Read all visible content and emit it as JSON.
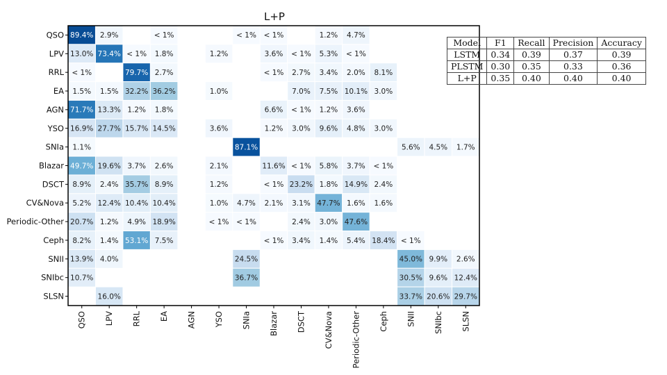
{
  "chart_data": {
    "type": "heatmap",
    "title": "L+P",
    "xlabel": "",
    "ylabel": "",
    "row_labels": [
      "QSO",
      "LPV",
      "RRL",
      "EA",
      "AGN",
      "YSO",
      "SNIa",
      "Blazar",
      "DSCT",
      "CV&Nova",
      "Periodic-Other",
      "Ceph",
      "SNII",
      "SNIbc",
      "SLSN"
    ],
    "col_labels": [
      "QSO",
      "LPV",
      "RRL",
      "EA",
      "AGN",
      "YSO",
      "SNIa",
      "Blazar",
      "DSCT",
      "CV&Nova",
      "Periodic-Other",
      "Ceph",
      "SNII",
      "SNIbc",
      "SLSN"
    ],
    "value_unit": "percent",
    "values": [
      [
        89.4,
        2.9,
        null,
        0.5,
        null,
        null,
        0.5,
        0.5,
        null,
        1.2,
        4.7,
        null,
        null,
        null,
        null
      ],
      [
        13.0,
        73.4,
        0.5,
        1.8,
        null,
        1.2,
        null,
        3.6,
        0.5,
        5.3,
        0.5,
        null,
        null,
        null,
        null
      ],
      [
        0.5,
        null,
        79.7,
        2.7,
        null,
        null,
        null,
        0.5,
        2.7,
        3.4,
        2.0,
        8.1,
        null,
        null,
        null
      ],
      [
        1.5,
        1.5,
        32.2,
        36.2,
        null,
        1.0,
        null,
        null,
        7.0,
        7.5,
        10.1,
        3.0,
        null,
        null,
        null
      ],
      [
        71.7,
        13.3,
        1.2,
        1.8,
        null,
        null,
        null,
        6.6,
        0.5,
        1.2,
        3.6,
        null,
        null,
        null,
        null
      ],
      [
        16.9,
        27.7,
        15.7,
        14.5,
        null,
        3.6,
        null,
        1.2,
        3.0,
        9.6,
        4.8,
        3.0,
        null,
        null,
        null
      ],
      [
        1.1,
        null,
        null,
        null,
        null,
        null,
        87.1,
        null,
        null,
        null,
        null,
        null,
        5.6,
        4.5,
        1.7
      ],
      [
        49.7,
        19.6,
        3.7,
        2.6,
        null,
        2.1,
        null,
        11.6,
        0.5,
        5.8,
        3.7,
        0.5,
        null,
        null,
        null
      ],
      [
        8.9,
        2.4,
        35.7,
        8.9,
        null,
        1.2,
        null,
        0.5,
        23.2,
        1.8,
        14.9,
        2.4,
        null,
        null,
        null
      ],
      [
        5.2,
        12.4,
        10.4,
        10.4,
        null,
        1.0,
        4.7,
        2.1,
        3.1,
        47.7,
        1.6,
        1.6,
        null,
        null,
        null
      ],
      [
        20.7,
        1.2,
        4.9,
        18.9,
        null,
        0.5,
        0.5,
        null,
        2.4,
        3.0,
        47.6,
        null,
        null,
        null,
        null
      ],
      [
        8.2,
        1.4,
        53.1,
        7.5,
        null,
        null,
        null,
        0.5,
        3.4,
        1.4,
        5.4,
        18.4,
        0.5,
        null,
        null
      ],
      [
        13.9,
        4.0,
        null,
        null,
        null,
        null,
        24.5,
        null,
        null,
        null,
        null,
        null,
        45.0,
        9.9,
        2.6
      ],
      [
        10.7,
        null,
        null,
        null,
        null,
        null,
        36.7,
        null,
        null,
        null,
        null,
        null,
        30.5,
        9.6,
        12.4
      ],
      [
        null,
        16.0,
        null,
        null,
        null,
        null,
        null,
        null,
        null,
        null,
        null,
        null,
        33.7,
        20.6,
        29.7
      ]
    ],
    "cell_labels": [
      [
        "89.4%",
        "2.9%",
        "",
        "< 1%",
        "",
        "",
        "< 1%",
        "< 1%",
        "",
        "1.2%",
        "4.7%",
        "",
        "",
        "",
        ""
      ],
      [
        "13.0%",
        "73.4%",
        "< 1%",
        "1.8%",
        "",
        "1.2%",
        "",
        "3.6%",
        "< 1%",
        "5.3%",
        "< 1%",
        "",
        "",
        "",
        ""
      ],
      [
        "< 1%",
        "",
        "79.7%",
        "2.7%",
        "",
        "",
        "",
        "< 1%",
        "2.7%",
        "3.4%",
        "2.0%",
        "8.1%",
        "",
        "",
        ""
      ],
      [
        "1.5%",
        "1.5%",
        "32.2%",
        "36.2%",
        "",
        "1.0%",
        "",
        "",
        "7.0%",
        "7.5%",
        "10.1%",
        "3.0%",
        "",
        "",
        ""
      ],
      [
        "71.7%",
        "13.3%",
        "1.2%",
        "1.8%",
        "",
        "",
        "",
        "6.6%",
        "< 1%",
        "1.2%",
        "3.6%",
        "",
        "",
        "",
        ""
      ],
      [
        "16.9%",
        "27.7%",
        "15.7%",
        "14.5%",
        "",
        "3.6%",
        "",
        "1.2%",
        "3.0%",
        "9.6%",
        "4.8%",
        "3.0%",
        "",
        "",
        ""
      ],
      [
        "1.1%",
        "",
        "",
        "",
        "",
        "",
        "87.1%",
        "",
        "",
        "",
        "",
        "",
        "5.6%",
        "4.5%",
        "1.7%"
      ],
      [
        "49.7%",
        "19.6%",
        "3.7%",
        "2.6%",
        "",
        "2.1%",
        "",
        "11.6%",
        "< 1%",
        "5.8%",
        "3.7%",
        "< 1%",
        "",
        "",
        ""
      ],
      [
        "8.9%",
        "2.4%",
        "35.7%",
        "8.9%",
        "",
        "1.2%",
        "",
        "< 1%",
        "23.2%",
        "1.8%",
        "14.9%",
        "2.4%",
        "",
        "",
        ""
      ],
      [
        "5.2%",
        "12.4%",
        "10.4%",
        "10.4%",
        "",
        "1.0%",
        "4.7%",
        "2.1%",
        "3.1%",
        "47.7%",
        "1.6%",
        "1.6%",
        "",
        "",
        ""
      ],
      [
        "20.7%",
        "1.2%",
        "4.9%",
        "18.9%",
        "",
        "< 1%",
        "< 1%",
        "",
        "2.4%",
        "3.0%",
        "47.6%",
        "",
        "",
        "",
        ""
      ],
      [
        "8.2%",
        "1.4%",
        "53.1%",
        "7.5%",
        "",
        "",
        "",
        "< 1%",
        "3.4%",
        "1.4%",
        "5.4%",
        "18.4%",
        "< 1%",
        "",
        ""
      ],
      [
        "13.9%",
        "4.0%",
        "",
        "",
        "",
        "",
        "24.5%",
        "",
        "",
        "",
        "",
        "",
        "45.0%",
        "9.9%",
        "2.6%"
      ],
      [
        "10.7%",
        "",
        "",
        "",
        "",
        "",
        "36.7%",
        "",
        "",
        "",
        "",
        "",
        "30.5%",
        "9.6%",
        "12.4%"
      ],
      [
        "",
        "16.0%",
        "",
        "",
        "",
        "",
        "",
        "",
        "",
        "",
        "",
        "",
        "33.7%",
        "20.6%",
        "29.7%"
      ]
    ],
    "color_range": [
      0,
      100
    ],
    "colormap": "Blues",
    "grid": false,
    "legend": "none"
  },
  "metrics_table": {
    "headers": [
      "Model",
      "F1",
      "Recall",
      "Precision",
      "Accuracy"
    ],
    "rows": [
      [
        "LSTM",
        "0.34",
        "0.39",
        "0.37",
        "0.39"
      ],
      [
        "PLSTM",
        "0.30",
        "0.35",
        "0.33",
        "0.36"
      ],
      [
        "L+P",
        "0.35",
        "0.40",
        "0.40",
        "0.40"
      ]
    ]
  },
  "colors": {
    "cmap_low": "#f7fbff",
    "cmap_mid": "#6baed6",
    "cmap_high": "#08306b",
    "text_dark": "#222222",
    "text_light": "#ffffff",
    "frame": "#000000"
  }
}
